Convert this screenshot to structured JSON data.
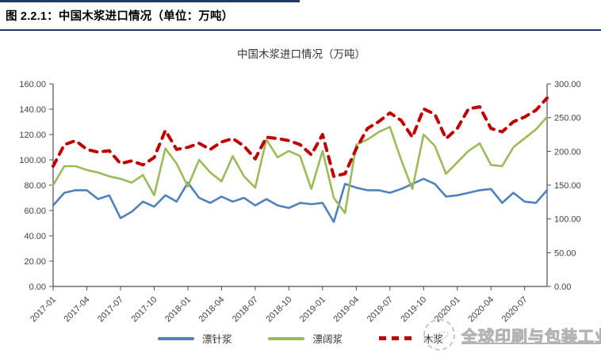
{
  "header": {
    "figure_label": "图 2.2.1：中国木浆进口情况（单位：万吨）"
  },
  "chart": {
    "watermark": "全球印刷与包装工业",
    "accent_color": "#1f3864"
  },
  "chart_data": {
    "type": "line",
    "title": "中国木浆进口情况（万吨）",
    "grid": false,
    "legend_position": "bottom",
    "months": [
      "2017-01",
      "2017-02",
      "2017-03",
      "2017-04",
      "2017-05",
      "2017-06",
      "2017-07",
      "2017-08",
      "2017-09",
      "2017-10",
      "2017-11",
      "2017-12",
      "2018-01",
      "2018-02",
      "2018-03",
      "2018-04",
      "2018-05",
      "2018-06",
      "2018-07",
      "2018-08",
      "2018-09",
      "2018-10",
      "2018-11",
      "2018-12",
      "2019-01",
      "2019-02",
      "2019-03",
      "2019-04",
      "2019-05",
      "2019-06",
      "2019-07",
      "2019-08",
      "2019-09",
      "2019-10",
      "2019-11",
      "2019-12",
      "2020-01",
      "2020-02",
      "2020-03",
      "2020-04",
      "2020-05",
      "2020-06",
      "2020-07",
      "2020-08",
      "2020-09"
    ],
    "x_tick_labels": [
      "2017-01",
      "2017-04",
      "2017-07",
      "2017-10",
      "2018-01",
      "2018-04",
      "2018-07",
      "2018-10",
      "2019-01",
      "2019-04",
      "2019-07",
      "2019-10",
      "2020-01",
      "2020-04",
      "2020-07"
    ],
    "left_axis": {
      "min": 0,
      "max": 160,
      "step": 20,
      "tick_labels": [
        "0.00",
        "20.00",
        "40.00",
        "60.00",
        "80.00",
        "100.00",
        "120.00",
        "140.00",
        "160.00"
      ]
    },
    "right_axis": {
      "min": 0,
      "max": 300,
      "step": 50,
      "tick_labels": [
        "0.00",
        "50.00",
        "100.00",
        "150.00",
        "200.00",
        "250.00",
        "300.00"
      ]
    },
    "series": [
      {
        "name": "漂针浆",
        "axis": "left",
        "color": "#4f81bd",
        "style": "solid",
        "values": [
          64,
          74,
          76,
          76,
          69,
          72,
          54,
          59,
          67,
          63,
          72,
          67,
          82,
          70,
          66,
          71,
          67,
          70,
          64,
          69,
          64,
          62,
          66,
          65,
          66,
          51,
          81,
          78,
          76,
          76,
          74,
          77,
          81,
          85,
          81,
          71,
          72,
          74,
          76,
          77,
          66,
          74,
          67,
          66,
          76
        ]
      },
      {
        "name": "漂阔浆",
        "axis": "left",
        "color": "#9bbb59",
        "style": "solid",
        "values": [
          80,
          95,
          95,
          92,
          90,
          87,
          85,
          82,
          88,
          72,
          109,
          97,
          79,
          100,
          90,
          83,
          103,
          87,
          78,
          116,
          102,
          107,
          103,
          77,
          107,
          70,
          58,
          112,
          116,
          122,
          126,
          100,
          77,
          120,
          111,
          89,
          98,
          107,
          113,
          96,
          95,
          110,
          117,
          124,
          134
        ]
      },
      {
        "name": "木浆",
        "axis": "right",
        "color": "#c00000",
        "style": "dashed",
        "values": [
          178,
          210,
          216,
          203,
          199,
          201,
          182,
          186,
          180,
          191,
          231,
          203,
          206,
          212,
          203,
          214,
          219,
          208,
          189,
          221,
          219,
          216,
          210,
          195,
          225,
          163,
          167,
          204,
          234,
          244,
          257,
          246,
          221,
          263,
          255,
          219,
          234,
          263,
          266,
          234,
          229,
          244,
          251,
          261,
          279
        ]
      }
    ]
  }
}
